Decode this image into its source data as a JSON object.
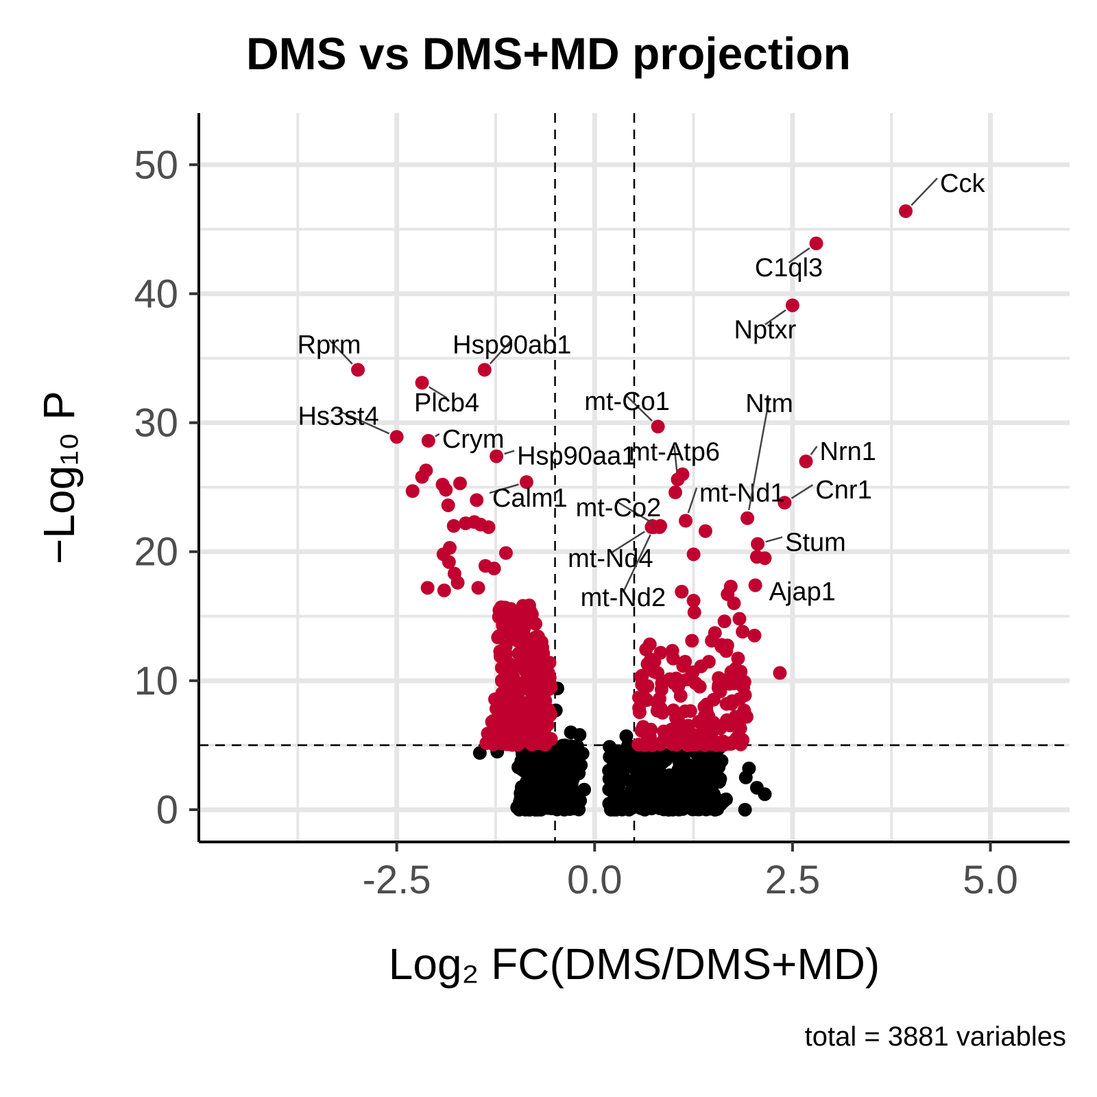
{
  "chart_data": {
    "type": "scatter",
    "title": "DMS vs DMS+MD projection",
    "xlabel": "Log₂ FC(DMS/DMS+MD)",
    "ylabel": "−Log₁₀ P",
    "caption": "total = 3881 variables",
    "xlim": [
      -5,
      6
    ],
    "ylim": [
      -2.5,
      54
    ],
    "xticks": [
      -2.5,
      0.0,
      2.5,
      5.0
    ],
    "xtick_labels": [
      "-2.5",
      "0.0",
      "2.5",
      "5.0"
    ],
    "yticks": [
      0,
      10,
      20,
      30,
      40,
      50
    ],
    "ytick_labels": [
      "0",
      "10",
      "20",
      "30",
      "40",
      "50"
    ],
    "grid": true,
    "thresholds": {
      "fc_cutoffs": [
        -0.5,
        0.5
      ],
      "p_cutoff": 5
    },
    "colors": {
      "significant": "#c0002f",
      "not_significant": "#000000",
      "grid": "#e6e6e6"
    },
    "labeled_genes": [
      {
        "name": "Cck",
        "x": 3.93,
        "y": 46.4
      },
      {
        "name": "C1ql3",
        "x": 2.8,
        "y": 43.9
      },
      {
        "name": "Nptxr",
        "x": 2.5,
        "y": 39.1
      },
      {
        "name": "Rprm",
        "x": -2.99,
        "y": 34.1
      },
      {
        "name": "Hsp90ab1",
        "x": -1.39,
        "y": 34.1
      },
      {
        "name": "Plcb4",
        "x": -2.18,
        "y": 33.1
      },
      {
        "name": "mt-Co1",
        "x": 0.8,
        "y": 29.7
      },
      {
        "name": "Hs3st4",
        "x": -2.5,
        "y": 28.9
      },
      {
        "name": "Crym",
        "x": -2.1,
        "y": 28.6
      },
      {
        "name": "Hsp90aa1",
        "x": -1.24,
        "y": 27.4
      },
      {
        "name": "Nrn1",
        "x": 2.67,
        "y": 27.0
      },
      {
        "name": "mt-Atp6",
        "x": 1.05,
        "y": 25.6
      },
      {
        "name": "Calm1",
        "x": -0.86,
        "y": 25.4
      },
      {
        "name": "mt-Nd1",
        "x": 1.15,
        "y": 22.4
      },
      {
        "name": "mt-Co2",
        "x": 0.82,
        "y": 21.9
      },
      {
        "name": "Cnr1",
        "x": 2.4,
        "y": 23.8
      },
      {
        "name": "Ntm",
        "x": 1.93,
        "y": 22.6
      },
      {
        "name": "mt-Nd4",
        "x": 0.72,
        "y": 21.9
      },
      {
        "name": "mt-Nd2",
        "x": 0.75,
        "y": 21.9
      },
      {
        "name": "Stum",
        "x": 2.06,
        "y": 20.6
      },
      {
        "name": "Ajap1",
        "x": 2.03,
        "y": 17.4
      }
    ],
    "extra_significant_points": [
      [
        -2.13,
        26.3
      ],
      [
        -2.18,
        25.8
      ],
      [
        -2.3,
        24.7
      ],
      [
        -1.92,
        25.2
      ],
      [
        -1.7,
        25.3
      ],
      [
        -1.88,
        24.8
      ],
      [
        -1.85,
        23.6
      ],
      [
        -1.49,
        24.0
      ],
      [
        -1.78,
        22.0
      ],
      [
        -1.63,
        22.2
      ],
      [
        -1.52,
        22.3
      ],
      [
        -1.44,
        22.1
      ],
      [
        -1.34,
        21.9
      ],
      [
        -1.83,
        20.3
      ],
      [
        -1.91,
        19.8
      ],
      [
        -1.84,
        19.2
      ],
      [
        -1.12,
        19.9
      ],
      [
        -1.38,
        18.9
      ],
      [
        -1.27,
        18.7
      ],
      [
        -1.77,
        18.3
      ],
      [
        -1.73,
        17.6
      ],
      [
        -2.11,
        17.2
      ],
      [
        -1.9,
        17.0
      ],
      [
        -1.47,
        17.2
      ],
      [
        0.73,
        22.0
      ],
      [
        0.83,
        22.0
      ],
      [
        1.02,
        24.6
      ],
      [
        1.11,
        26.0
      ],
      [
        1.4,
        21.6
      ],
      [
        1.25,
        19.8
      ],
      [
        1.1,
        16.9
      ],
      [
        1.25,
        16.2
      ],
      [
        1.26,
        15.3
      ],
      [
        2.05,
        19.6
      ],
      [
        2.15,
        19.5
      ],
      [
        1.72,
        17.3
      ],
      [
        1.68,
        16.7
      ],
      [
        1.76,
        16.0
      ],
      [
        1.83,
        14.8
      ],
      [
        1.87,
        13.8
      ],
      [
        2.02,
        13.5
      ],
      [
        1.64,
        14.6
      ],
      [
        1.52,
        13.7
      ],
      [
        1.48,
        13.1
      ],
      [
        1.23,
        13.1
      ],
      [
        2.34,
        10.6
      ],
      [
        0.85,
        9.8
      ],
      [
        0.82,
        8.6
      ],
      [
        0.56,
        8.7
      ],
      [
        0.66,
        8.5
      ],
      [
        1.76,
        9.8
      ],
      [
        1.73,
        8.2
      ],
      [
        1.78,
        7.2
      ],
      [
        1.92,
        7.2
      ],
      [
        1.84,
        6.3
      ],
      [
        1.79,
        5.5
      ],
      [
        1.87,
        5.4
      ],
      [
        -0.67,
        13.0
      ],
      [
        -0.57,
        11.4
      ],
      [
        -0.64,
        10.0
      ],
      [
        -0.75,
        8.1
      ]
    ]
  }
}
